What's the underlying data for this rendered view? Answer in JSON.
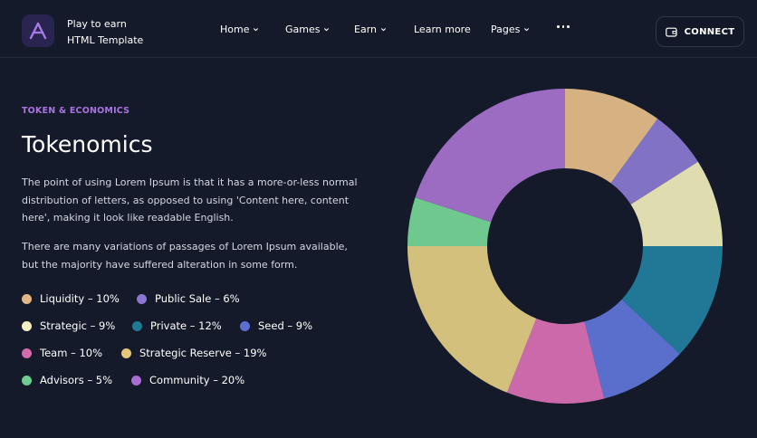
{
  "header": {
    "brand_line1": "Play to earn",
    "brand_line2": "HTML Template",
    "nav": [
      {
        "label": "Home",
        "has_dropdown": true
      },
      {
        "label": "Games",
        "has_dropdown": true
      },
      {
        "label": "Earn",
        "has_dropdown": true
      },
      {
        "label": "Learn more",
        "has_dropdown": false
      },
      {
        "label": "Pages",
        "has_dropdown": true
      }
    ],
    "more_icon": "ellipsis-icon",
    "connect_label": "CONNECT",
    "connect_icon": "wallet-icon"
  },
  "section": {
    "eyebrow": "TOKEN & ECONOMICS",
    "title": "Tokenomics",
    "paragraph1": "The point of using Lorem Ipsum is that it has a more-or-less normal distribution of letters, as opposed to using 'Content here, content here', making it look like readable English.",
    "paragraph2": "There are many variations of passages of Lorem Ipsum available, but the majority have suffered alteration in some form."
  },
  "legend": [
    {
      "label": "Liquidity – 10%",
      "color": "#e3b785"
    },
    {
      "label": "Public Sale – 6%",
      "color": "#8b76d2"
    },
    {
      "label": "Strategic – 9%",
      "color": "#f5efc6"
    },
    {
      "label": "Private – 12%",
      "color": "#207a94"
    },
    {
      "label": "Seed – 9%",
      "color": "#5c6fd0"
    },
    {
      "label": "Team – 10%",
      "color": "#d56aac"
    },
    {
      "label": "Strategic Reserve – 19%",
      "color": "#e3c57b"
    },
    {
      "label": "Advisors – 5%",
      "color": "#6fcd91"
    },
    {
      "label": "Community – 20%",
      "color": "#a86dd2"
    }
  ],
  "chart_data": {
    "type": "pie",
    "donut": true,
    "categories": [
      "Liquidity",
      "Public Sale",
      "Strategic",
      "Private",
      "Seed",
      "Team",
      "Strategic Reserve",
      "Advisors",
      "Community"
    ],
    "values": [
      10,
      6,
      9,
      12,
      9,
      10,
      19,
      5,
      20
    ],
    "colors": [
      "#d6b282",
      "#8272c6",
      "#dfdcb0",
      "#217896",
      "#5a6fcb",
      "#cc69ab",
      "#d4c07d",
      "#6fc98e",
      "#9c6cc3"
    ]
  }
}
